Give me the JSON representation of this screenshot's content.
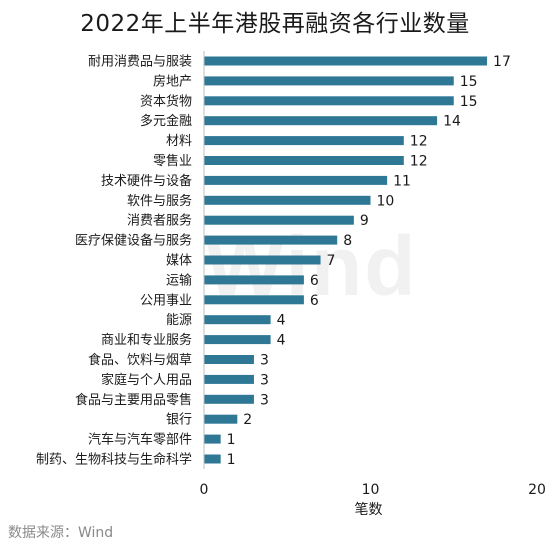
{
  "chart_data": {
    "type": "bar",
    "orientation": "horizontal",
    "title": "2022年上半年港股再融资各行业数量",
    "categories": [
      "耐用消费品与服装",
      "房地产",
      "资本货物",
      "多元金融",
      "材料",
      "零售业",
      "技术硬件与设备",
      "软件与服务",
      "消费者服务",
      "医疗保健设备与服务",
      "媒体",
      "运输",
      "公用事业",
      "能源",
      "商业和专业服务",
      "食品、饮料与烟草",
      "家庭与个人用品",
      "食品与主要用品零售",
      "银行",
      "汽车与汽车零部件",
      "制药、生物科技与生命科学"
    ],
    "values": [
      17,
      15,
      15,
      14,
      12,
      12,
      11,
      10,
      9,
      8,
      7,
      6,
      6,
      4,
      4,
      3,
      3,
      3,
      2,
      1,
      1
    ],
    "xlabel": "笔数",
    "ylabel": "",
    "xlim": [
      0,
      20
    ],
    "xticks": [
      "0",
      "10",
      "20"
    ],
    "grid": false,
    "bar_color": "#2e7896"
  },
  "watermark": "Wind",
  "source": "数据来源：Wind"
}
